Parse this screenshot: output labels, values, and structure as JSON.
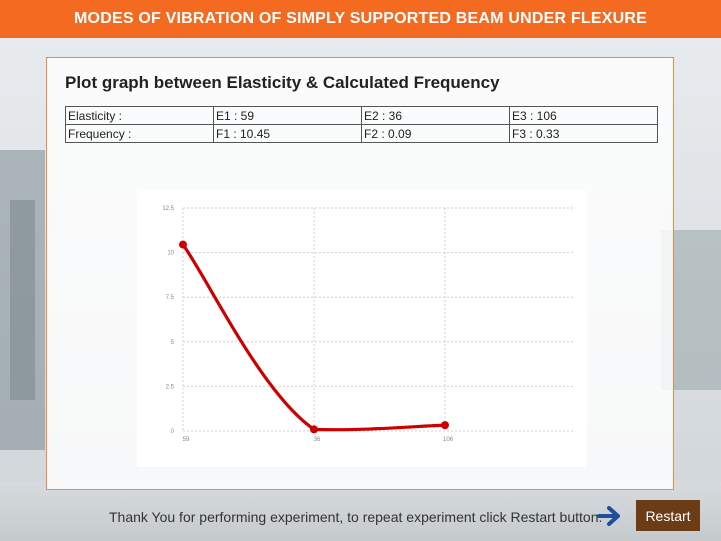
{
  "header": {
    "title": "MODES OF VIBRATION OF SIMPLY SUPPORTED BEAM UNDER FLEXURE"
  },
  "panel": {
    "title": "Plot graph between Elasticity & Calculated Frequency"
  },
  "table": {
    "rows": [
      [
        "Elasticity :",
        "E1 : 59",
        "E2 : 36",
        "E3 : 106"
      ],
      [
        "Frequency :",
        "F1 : 10.45",
        "F2 : 0.09",
        "F3 : 0.33"
      ]
    ]
  },
  "chart_data": {
    "type": "line",
    "categories": [
      "59",
      "36",
      "106"
    ],
    "series": [
      {
        "values": [
          10.45,
          0.09,
          0.33
        ],
        "color": "#cc0000"
      }
    ],
    "y_ticks": [
      "0",
      "2.5",
      "5",
      "7.5",
      "10",
      "12.5"
    ],
    "ylim": [
      0,
      12.5
    ],
    "grid": true,
    "title": "",
    "xlabel": "",
    "ylabel": ""
  },
  "footer": {
    "message": "Thank You for performing experiment, to repeat experiment click Restart button.",
    "arrow_icon": "arrow-right-icon",
    "restart_label": "Restart"
  }
}
